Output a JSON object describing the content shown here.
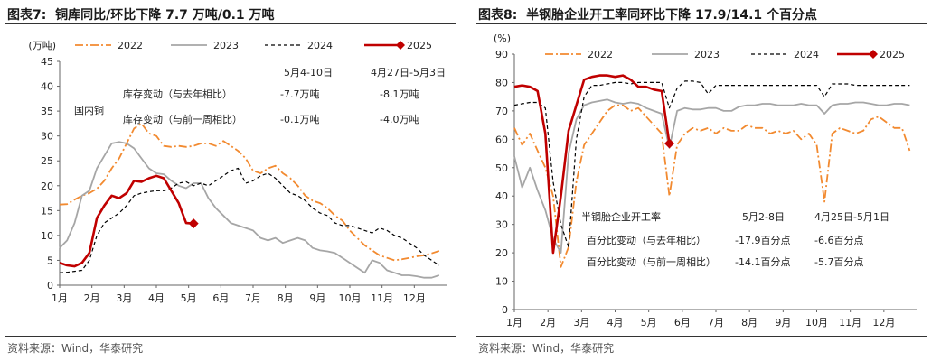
{
  "source_text": "资料来源：Wind，华泰研究",
  "chart_data": [
    {
      "type": "line",
      "figure_label": "图表7:",
      "title": "铜库同比/环比下降 7.7 万吨/0.1 万吨",
      "ylabel": "(万吨)",
      "ylim": [
        0,
        45
      ],
      "yticks": [
        0,
        5,
        10,
        15,
        20,
        25,
        30,
        35,
        40,
        45
      ],
      "xticks": [
        "1月",
        "2月",
        "3月",
        "4月",
        "5月",
        "6月",
        "7月",
        "8月",
        "9月",
        "10月",
        "11月",
        "12月"
      ],
      "x_unit": "week_of_year",
      "grid": false,
      "legend_position": "top",
      "series": [
        {
          "name": "2022",
          "color": "#f28a30",
          "style": "dashdot",
          "x": [
            1,
            2,
            3,
            4,
            5,
            6,
            7,
            8,
            9,
            10,
            11,
            12,
            13,
            14,
            15,
            16,
            17,
            18,
            19,
            20,
            21,
            22,
            23,
            24,
            25,
            26,
            27,
            28,
            29,
            30,
            31,
            32,
            33,
            34,
            35,
            36,
            37,
            38,
            39,
            40,
            41,
            42,
            43,
            44,
            45,
            46,
            47,
            48,
            49,
            50,
            51,
            52
          ],
          "values": [
            16.2,
            16.3,
            17.2,
            18.0,
            18.5,
            19.4,
            21.0,
            23.5,
            25.5,
            28.5,
            31.5,
            32.5,
            30.5,
            30.0,
            28.0,
            27.8,
            28.0,
            27.8,
            28.0,
            28.5,
            28.5,
            28.0,
            29.0,
            28.0,
            27.0,
            25.5,
            23.0,
            22.5,
            23.5,
            24.0,
            22.5,
            21.5,
            20.0,
            18.0,
            17.0,
            16.5,
            15.5,
            14.0,
            13.0,
            11.0,
            9.5,
            8.0,
            7.0,
            6.0,
            5.5,
            5.0,
            5.2,
            5.5,
            5.8,
            6.0,
            6.4,
            6.9
          ]
        },
        {
          "name": "2023",
          "color": "#a6a6a6",
          "style": "solid",
          "x": [
            1,
            2,
            3,
            4,
            5,
            6,
            7,
            8,
            9,
            10,
            11,
            12,
            13,
            14,
            15,
            16,
            17,
            18,
            19,
            20,
            21,
            22,
            23,
            24,
            25,
            26,
            27,
            28,
            29,
            30,
            31,
            32,
            33,
            34,
            35,
            36,
            37,
            38,
            39,
            40,
            41,
            42,
            43,
            44,
            45,
            46,
            47,
            48,
            49,
            50,
            51,
            52
          ],
          "values": [
            7.5,
            9.0,
            12.5,
            18.0,
            19.0,
            23.5,
            26.0,
            28.5,
            28.8,
            28.5,
            27.5,
            25.5,
            23.5,
            22.5,
            22.3,
            21.0,
            20.0,
            19.5,
            20.5,
            20.5,
            17.5,
            15.5,
            14.0,
            12.5,
            12.0,
            11.5,
            11.0,
            9.5,
            9.0,
            9.5,
            8.5,
            9.0,
            9.5,
            9.0,
            7.5,
            7.0,
            6.8,
            6.5,
            5.5,
            4.5,
            3.5,
            2.5,
            5.0,
            4.5,
            3.0,
            2.5,
            2.0,
            2.0,
            1.8,
            1.5,
            1.5,
            2.0
          ]
        },
        {
          "name": "2024",
          "color": "#000000",
          "style": "dashed",
          "x": [
            1,
            2,
            3,
            4,
            5,
            6,
            7,
            8,
            9,
            10,
            11,
            12,
            13,
            14,
            15,
            16,
            17,
            18,
            19,
            20,
            21,
            22,
            23,
            24,
            25,
            26,
            27,
            28,
            29,
            30,
            31,
            32,
            33,
            34,
            35,
            36,
            37,
            38,
            39,
            40,
            41,
            42,
            43,
            44,
            45,
            46,
            47,
            48,
            49,
            50,
            51,
            52
          ],
          "values": [
            2.5,
            2.6,
            2.8,
            3.0,
            5.0,
            10.0,
            12.5,
            13.5,
            14.5,
            16.0,
            18.0,
            18.5,
            18.8,
            19.0,
            19.0,
            19.5,
            20.5,
            20.8,
            20.0,
            20.5,
            20.0,
            21.0,
            22.0,
            23.0,
            23.5,
            20.5,
            21.0,
            22.0,
            22.5,
            21.5,
            20.0,
            18.5,
            18.0,
            17.0,
            15.5,
            14.5,
            14.0,
            12.5,
            12.0,
            12.0,
            11.5,
            11.0,
            10.5,
            11.5,
            11.0,
            10.0,
            9.5,
            8.5,
            7.5,
            6.0,
            5.0,
            4.0
          ]
        },
        {
          "name": "2025",
          "color": "#c00000",
          "style": "solid_marker_end",
          "x": [
            1,
            2,
            3,
            4,
            5,
            6,
            7,
            8,
            9,
            10,
            11,
            12,
            13,
            14,
            15,
            16,
            17,
            18,
            19
          ],
          "values": [
            4.5,
            4.0,
            3.8,
            4.5,
            6.5,
            13.5,
            16.0,
            18.0,
            17.5,
            18.5,
            21.0,
            20.8,
            21.5,
            22.0,
            21.5,
            19.0,
            16.5,
            12.5,
            12.4
          ]
        }
      ],
      "annotations": {
        "region": "国内铜",
        "header_cols": [
          "5月4-10日",
          "4月27日-5月3日"
        ],
        "rows": [
          {
            "label": "库存变动（与去年相比）",
            "values": [
              "-7.7万吨",
              "-8.1万吨"
            ]
          },
          {
            "label": "库存变动（与前一周相比）",
            "values": [
              "-0.1万吨",
              "-4.0万吨"
            ]
          }
        ]
      }
    },
    {
      "type": "line",
      "figure_label": "图表8:",
      "title": "半钢胎企业开工率同环比下降 17.9/14.1 个百分点",
      "ylabel": "(%)",
      "ylim": [
        0,
        90
      ],
      "yticks": [
        0,
        10,
        20,
        30,
        40,
        50,
        60,
        70,
        80,
        90
      ],
      "xticks": [
        "1月",
        "2月",
        "3月",
        "4月",
        "5月",
        "6月",
        "7月",
        "8月",
        "9月",
        "10月",
        "11月",
        "12月"
      ],
      "x_unit": "week_of_year",
      "grid": false,
      "legend_position": "top",
      "series": [
        {
          "name": "2022",
          "color": "#f28a30",
          "style": "dashdot",
          "x": [
            1,
            2,
            3,
            4,
            5,
            6,
            7,
            8,
            9,
            10,
            11,
            12,
            13,
            14,
            15,
            16,
            17,
            18,
            19,
            20,
            21,
            22,
            23,
            24,
            25,
            26,
            27,
            28,
            29,
            30,
            31,
            32,
            33,
            34,
            35,
            36,
            37,
            38,
            39,
            40,
            41,
            42,
            43,
            44,
            45,
            46,
            47,
            48,
            49,
            50,
            51,
            52
          ],
          "values": [
            64,
            58,
            62,
            56,
            50,
            40,
            15,
            22,
            45,
            58,
            62,
            66,
            70,
            72,
            72,
            70,
            71,
            68,
            65,
            62,
            40,
            58,
            62,
            64,
            63,
            64,
            62,
            64,
            63,
            63,
            65,
            64,
            64,
            62,
            63,
            62,
            63,
            60,
            62,
            58,
            38,
            62,
            64,
            63,
            62,
            63,
            67,
            68,
            66,
            64,
            64,
            56
          ]
        },
        {
          "name": "2023",
          "color": "#a6a6a6",
          "style": "solid",
          "x": [
            1,
            2,
            3,
            4,
            5,
            6,
            7,
            8,
            9,
            10,
            11,
            12,
            13,
            14,
            15,
            16,
            17,
            18,
            19,
            20,
            21,
            22,
            23,
            24,
            25,
            26,
            27,
            28,
            29,
            30,
            31,
            32,
            33,
            34,
            35,
            36,
            37,
            38,
            39,
            40,
            41,
            42,
            43,
            44,
            45,
            46,
            47,
            48,
            49,
            50,
            51,
            52
          ],
          "values": [
            54,
            43,
            50,
            42,
            35,
            25,
            20,
            55,
            67,
            72,
            73,
            73.5,
            74,
            73,
            72.5,
            73,
            72.5,
            71,
            70,
            69,
            57,
            70,
            71,
            70.5,
            70.5,
            71,
            71,
            70,
            70,
            71.5,
            72,
            72,
            72.5,
            72.5,
            72,
            72,
            72,
            72.5,
            72,
            72,
            69,
            72,
            72.5,
            72.5,
            73,
            73,
            72.5,
            72,
            72,
            72.5,
            72.5,
            72
          ]
        },
        {
          "name": "2024",
          "color": "#000000",
          "style": "dashed",
          "x": [
            1,
            2,
            3,
            4,
            5,
            6,
            7,
            8,
            9,
            10,
            11,
            12,
            13,
            14,
            15,
            16,
            17,
            18,
            19,
            20,
            21,
            22,
            23,
            24,
            25,
            26,
            27,
            28,
            29,
            30,
            31,
            32,
            33,
            34,
            35,
            36,
            37,
            38,
            39,
            40,
            41,
            42,
            43,
            44,
            45,
            46,
            47,
            48,
            49,
            50,
            51,
            52
          ],
          "values": [
            72,
            72.5,
            73,
            73,
            71,
            45,
            30,
            22,
            60,
            75,
            79,
            79,
            79.5,
            80,
            80,
            79.5,
            80,
            80,
            80,
            80,
            71,
            78,
            80.5,
            80.5,
            80,
            76,
            79,
            79,
            79,
            79,
            79,
            79,
            79,
            79,
            79,
            79,
            79,
            79,
            79,
            79,
            75,
            79.5,
            79.5,
            79.5,
            79,
            79,
            79,
            79,
            79,
            79,
            79,
            79
          ]
        },
        {
          "name": "2025",
          "color": "#c00000",
          "style": "solid_marker_end",
          "x": [
            1,
            2,
            3,
            4,
            5,
            6,
            7,
            8,
            9,
            10,
            11,
            12,
            13,
            14,
            15,
            16,
            17,
            18,
            19,
            20,
            21
          ],
          "values": [
            78.5,
            79,
            78.5,
            77,
            62,
            20,
            40,
            63,
            72,
            81,
            82,
            82.5,
            82.5,
            82,
            82.5,
            81,
            78.5,
            78.5,
            77.5,
            77,
            58.5
          ]
        }
      ],
      "annotations": {
        "region": "半钢胎企业开工率",
        "header_cols": [
          "5月2-8日",
          "4月25日-5月1日"
        ],
        "rows": [
          {
            "label": "百分比变动（与去年相比）",
            "values": [
              "-17.9百分点",
              "-6.6百分点"
            ]
          },
          {
            "label": "百分比变动（与前一周相比）",
            "values": [
              "-14.1百分点",
              "-5.7百分点"
            ]
          }
        ]
      }
    }
  ]
}
